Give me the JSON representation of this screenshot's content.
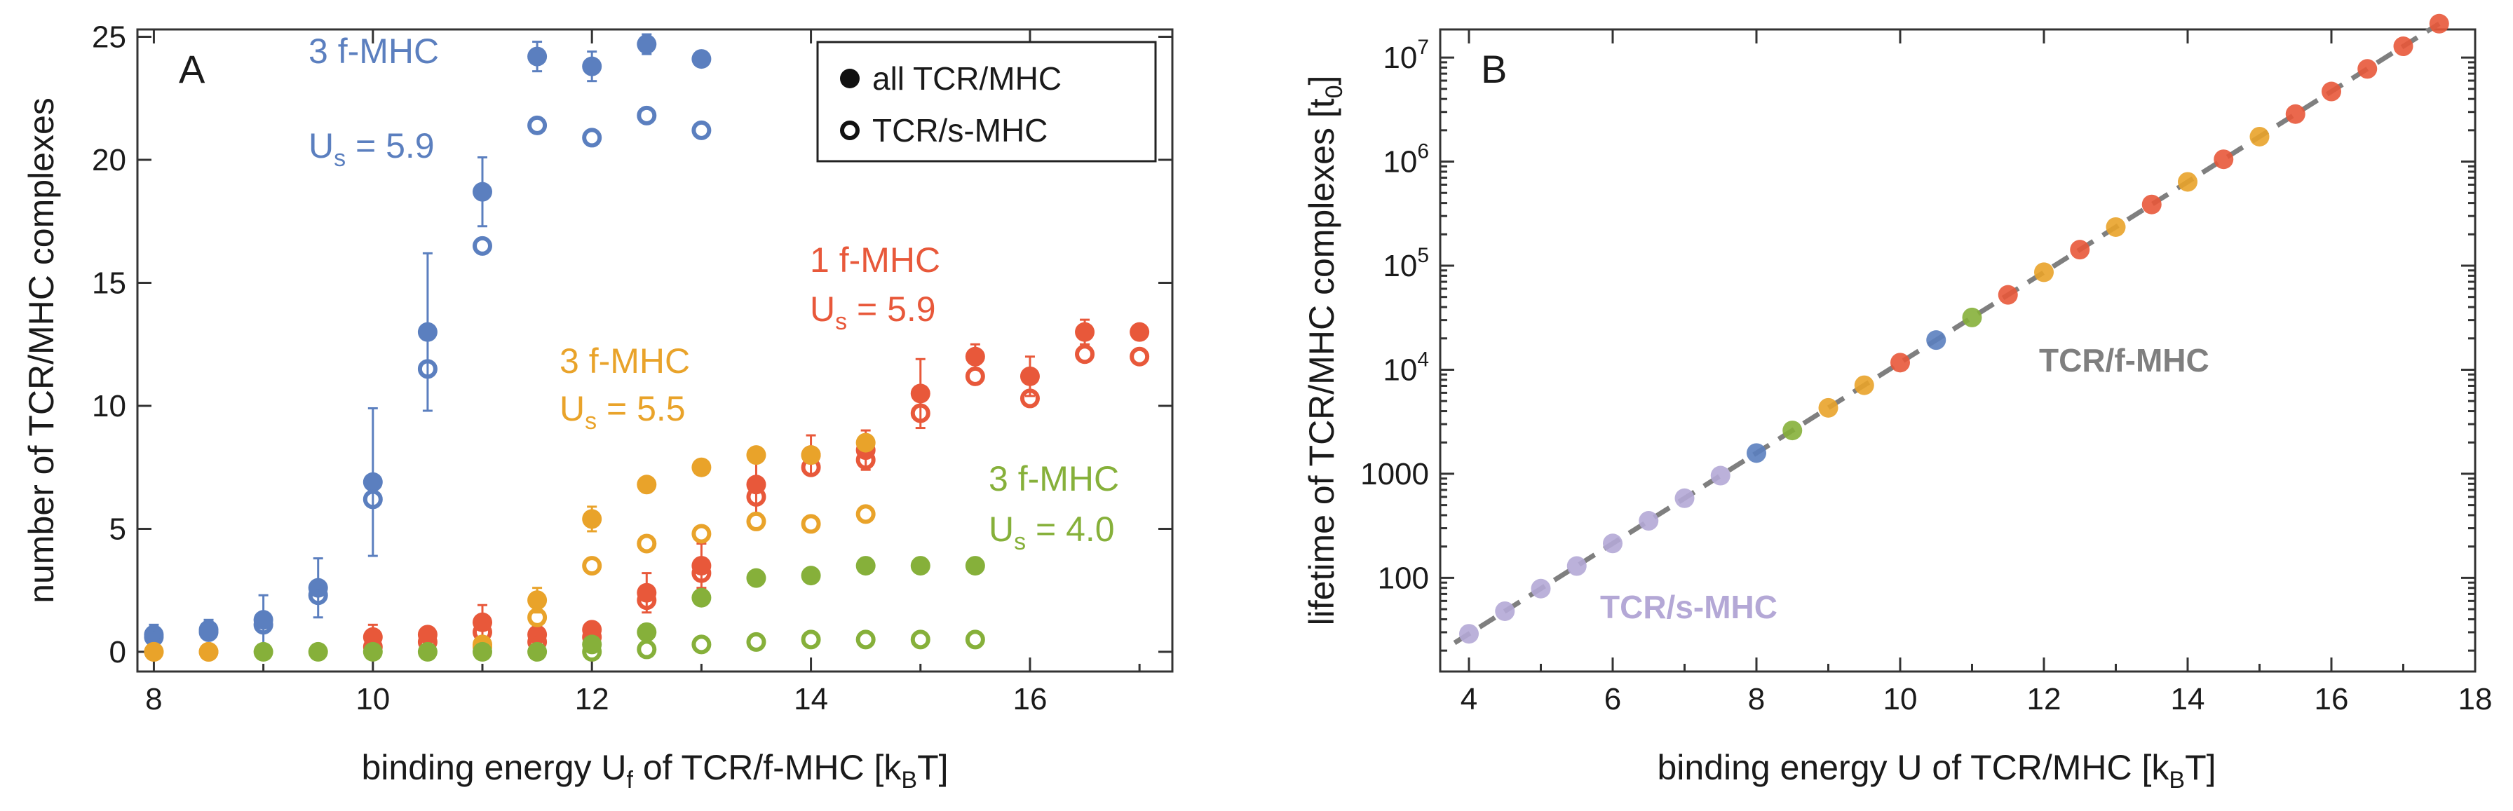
{
  "colors": {
    "blue": "#5B7FBF",
    "red": "#E8583A",
    "orange": "#E9A32A",
    "green": "#86B03A",
    "purple": "#B4A8D6",
    "grey": "#7F7F7F",
    "axis": "#333333"
  },
  "chart_data": [
    {
      "panel": "A",
      "type": "scatter",
      "title": "",
      "xlabel": "binding energy U",
      "xlabel_sub": "f",
      "xlabel_rest": " of TCR/f-MHC [k",
      "xlabel_sub2": "B",
      "xlabel_end": "T]",
      "ylabel": "number of TCR/MHC complexes",
      "xlim": [
        7.85,
        17.3
      ],
      "ylim": [
        -0.8,
        25.3
      ],
      "xticks": [
        8,
        10,
        12,
        14,
        16
      ],
      "yticks": [
        0,
        5,
        10,
        15,
        20,
        25
      ],
      "legend": {
        "position": "top-right",
        "filled": "all TCR/MHC",
        "open": "TCR/s-MHC"
      },
      "series": [
        {
          "name": "3 f-MHC, Us = 5.9",
          "color": "blue",
          "label_line1": "3 f-MHC",
          "label_u": "U",
          "label_sub": "s",
          "label_val": " = 5.9",
          "all": [
            [
              8,
              0.7,
              0.4
            ],
            [
              8.5,
              0.9,
              0.4
            ],
            [
              9,
              1.3,
              1.0
            ],
            [
              9.5,
              2.6,
              1.2
            ],
            [
              10,
              6.9,
              3.0
            ],
            [
              10.5,
              13.0,
              3.2
            ],
            [
              11,
              18.7,
              1.4
            ],
            [
              11.5,
              24.2,
              0.6
            ],
            [
              12,
              23.8,
              0.6
            ],
            [
              12.5,
              24.7,
              0.4
            ],
            [
              13,
              24.1,
              0.3
            ]
          ],
          "s": [
            [
              8,
              0.6
            ],
            [
              8.5,
              0.8
            ],
            [
              9,
              1.1
            ],
            [
              9.5,
              2.3
            ],
            [
              10,
              6.2
            ],
            [
              10.5,
              11.5
            ],
            [
              11,
              16.5
            ],
            [
              11.5,
              21.4
            ],
            [
              12,
              20.9
            ],
            [
              12.5,
              21.8
            ],
            [
              13,
              21.2
            ]
          ]
        },
        {
          "name": "1 f-MHC, Us = 5.9",
          "color": "red",
          "label_line1": "1 f-MHC",
          "label_u": "U",
          "label_sub": "s",
          "label_val": " = 5.9",
          "all": [
            [
              10,
              0.6,
              0.5
            ],
            [
              10.5,
              0.7,
              0.3
            ],
            [
              11,
              1.2,
              0.7
            ],
            [
              11.5,
              0.7,
              0.3
            ],
            [
              12,
              0.9,
              0.3
            ],
            [
              12.5,
              2.4,
              0.8
            ],
            [
              13,
              3.5,
              0.9
            ],
            [
              13.5,
              6.8,
              1.2
            ],
            [
              14,
              8.0,
              0.8
            ],
            [
              14.5,
              8.2,
              0.8
            ],
            [
              15,
              10.5,
              1.4
            ],
            [
              15.5,
              12.0,
              0.5
            ],
            [
              16,
              11.2,
              0.8
            ],
            [
              16.5,
              13.0,
              0.5
            ],
            [
              17,
              13.0,
              0.3
            ]
          ],
          "s": [
            [
              10,
              0.2
            ],
            [
              10.5,
              0.4
            ],
            [
              11,
              0.8
            ],
            [
              11.5,
              0.4
            ],
            [
              12,
              0.6
            ],
            [
              12.5,
              2.1
            ],
            [
              13,
              3.2
            ],
            [
              13.5,
              6.3
            ],
            [
              14,
              7.5
            ],
            [
              14.5,
              7.8
            ],
            [
              15,
              9.7
            ],
            [
              15.5,
              11.2
            ],
            [
              16,
              10.3
            ],
            [
              16.5,
              12.1
            ],
            [
              17,
              12.0
            ]
          ]
        },
        {
          "name": "3 f-MHC, Us = 5.5",
          "color": "orange",
          "label_line1": "3 f-MHC",
          "label_u": "U",
          "label_sub": "s",
          "label_val": " = 5.5",
          "all": [
            [
              8,
              0.0,
              0.2
            ],
            [
              8.5,
              0.0,
              0.2
            ],
            [
              11,
              0.3,
              0.3
            ],
            [
              11.5,
              2.1,
              0.5
            ],
            [
              12,
              5.4,
              0.5
            ],
            [
              12.5,
              6.8,
              0.3
            ],
            [
              13,
              7.5,
              0.2
            ],
            [
              13.5,
              8.0,
              0.3
            ],
            [
              14,
              8.0,
              0.3
            ],
            [
              14.5,
              8.5,
              0.3
            ]
          ],
          "s": [
            [
              8,
              0.0
            ],
            [
              8.5,
              0.0
            ],
            [
              11,
              0.2
            ],
            [
              11.5,
              1.4
            ],
            [
              12,
              3.5
            ],
            [
              12.5,
              4.4
            ],
            [
              13,
              4.8
            ],
            [
              13.5,
              5.3
            ],
            [
              14,
              5.2
            ],
            [
              14.5,
              5.6
            ]
          ]
        },
        {
          "name": "3 f-MHC, Us = 4.0",
          "color": "green",
          "label_line1": "3 f-MHC",
          "label_u": "U",
          "label_sub": "s",
          "label_val": " = 4.0",
          "all": [
            [
              9,
              0.0,
              0.1
            ],
            [
              9.5,
              0.0,
              0.1
            ],
            [
              10,
              0.0,
              0.1
            ],
            [
              10.5,
              0.0,
              0.1
            ],
            [
              11,
              0.0,
              0.1
            ],
            [
              11.5,
              0.0,
              0.1
            ],
            [
              12,
              0.3,
              0.2
            ],
            [
              12.5,
              0.8,
              0.3
            ],
            [
              13,
              2.2,
              0.3
            ],
            [
              13.5,
              3.0,
              0.2
            ],
            [
              14,
              3.1,
              0.2
            ],
            [
              14.5,
              3.5,
              0.2
            ],
            [
              15,
              3.5,
              0.2
            ],
            [
              15.5,
              3.5,
              0.2
            ]
          ],
          "s": [
            [
              12,
              0.0
            ],
            [
              12.5,
              0.1
            ],
            [
              13,
              0.3
            ],
            [
              13.5,
              0.4
            ],
            [
              14,
              0.5
            ],
            [
              14.5,
              0.5
            ],
            [
              15,
              0.5
            ],
            [
              15.5,
              0.5
            ]
          ]
        }
      ]
    },
    {
      "panel": "B",
      "type": "scatter",
      "title": "",
      "xlabel": "binding energy U of TCR/MHC [k",
      "xlabel_sub": "B",
      "xlabel_end": "T]",
      "ylabel_part1": "lifetime of  TCR/MHC complexes  [t",
      "ylabel_sub": "0",
      "ylabel_end": "]",
      "yscale": "log",
      "xlim": [
        3.6,
        18.0
      ],
      "ylim_log10": [
        1.1,
        7.27
      ],
      "xticks": [
        4,
        6,
        8,
        10,
        12,
        14,
        16,
        18
      ],
      "yticks": [
        {
          "value": 100,
          "label": "100",
          "exp": ""
        },
        {
          "value": 1000,
          "label": "1000",
          "exp": ""
        },
        {
          "value": 10000,
          "label": "10",
          "exp": "4"
        },
        {
          "value": 100000,
          "label": "10",
          "exp": "5"
        },
        {
          "value": 1000000,
          "label": "10",
          "exp": "6"
        },
        {
          "value": 10000000,
          "label": "10",
          "exp": "7"
        }
      ],
      "fit_line": {
        "x0": 3.8,
        "x1": 17.5,
        "slope_log10": 0.4343,
        "intercept_log10": -0.275,
        "style": "dashed"
      },
      "annotations": {
        "f_label": "TCR/f-MHC",
        "s_label": "TCR/s-MHC"
      },
      "points": [
        {
          "x": 4.0,
          "color": "purple"
        },
        {
          "x": 4.5,
          "color": "purple"
        },
        {
          "x": 5.0,
          "color": "purple"
        },
        {
          "x": 5.5,
          "color": "purple"
        },
        {
          "x": 6.0,
          "color": "purple"
        },
        {
          "x": 6.5,
          "color": "purple"
        },
        {
          "x": 7.0,
          "color": "purple"
        },
        {
          "x": 7.5,
          "color": "purple"
        },
        {
          "x": 8.0,
          "color": "blue"
        },
        {
          "x": 8.5,
          "color": "green"
        },
        {
          "x": 9.0,
          "color": "orange"
        },
        {
          "x": 9.5,
          "color": "orange"
        },
        {
          "x": 10.0,
          "color": "red"
        },
        {
          "x": 10.5,
          "color": "blue"
        },
        {
          "x": 11.0,
          "color": "green"
        },
        {
          "x": 11.5,
          "color": "red"
        },
        {
          "x": 12.0,
          "color": "orange"
        },
        {
          "x": 12.5,
          "color": "red"
        },
        {
          "x": 13.0,
          "color": "orange"
        },
        {
          "x": 13.5,
          "color": "red"
        },
        {
          "x": 14.0,
          "color": "orange"
        },
        {
          "x": 14.5,
          "color": "red"
        },
        {
          "x": 15.0,
          "color": "orange"
        },
        {
          "x": 15.5,
          "color": "red"
        },
        {
          "x": 16.0,
          "color": "red"
        },
        {
          "x": 16.5,
          "color": "red"
        },
        {
          "x": 17.0,
          "color": "red"
        },
        {
          "x": 17.5,
          "color": "red"
        }
      ]
    }
  ]
}
